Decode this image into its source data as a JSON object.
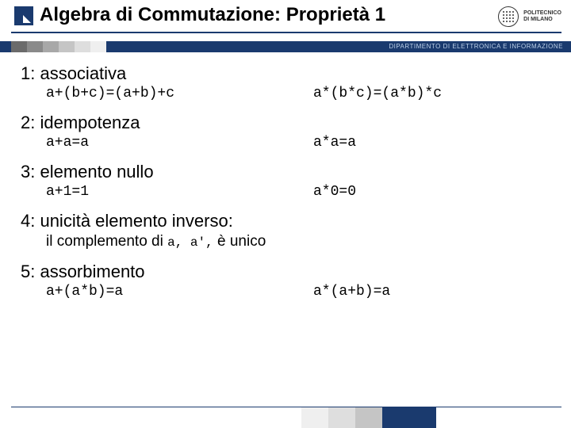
{
  "colors": {
    "brand": "#1a3a6e",
    "dept_text": "#bcd0e8",
    "grad": [
      "#6b6b6b",
      "#8a8a8a",
      "#a8a8a8",
      "#c5c5c5",
      "#dedede",
      "#efefef"
    ],
    "footer": [
      "#efefef",
      "#dedede",
      "#c5c5c5",
      "#1a3a6e",
      "#1a3a6e"
    ]
  },
  "header": {
    "title": "Algebra di Commutazione: Proprietà 1",
    "institution_line1": "POLITECNICO",
    "institution_line2": "DI MILANO",
    "department": "DIPARTIMENTO DI ELETTRONICA E INFORMAZIONE"
  },
  "props": [
    {
      "title": "1: associativa",
      "left": "a+(b+c)=(a+b)+c",
      "right": "a*(b*c)=(a*b)*c"
    },
    {
      "title": "2: idempotenza",
      "left": "a+a=a",
      "right": "a*a=a"
    },
    {
      "title": "3: elemento nullo",
      "left": "a+1=1",
      "right": "a*0=0"
    },
    {
      "title": "4: unicità elemento inverso:",
      "sub_pre": "il complemento di ",
      "sub_code": "a, a',",
      "sub_post": " è unico"
    },
    {
      "title": "5: assorbimento",
      "left": "a+(a*b)=a",
      "right": "a*(a+b)=a"
    }
  ]
}
